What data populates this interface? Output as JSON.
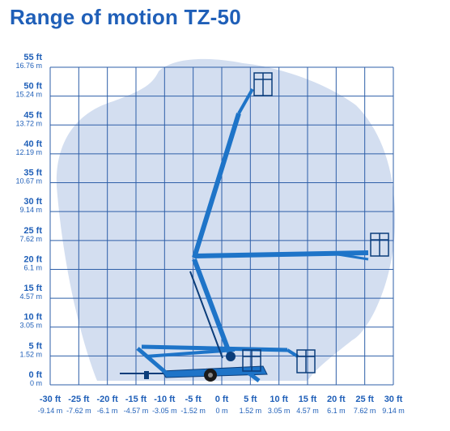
{
  "title": "Range of motion TZ-50",
  "colors": {
    "title": "#1f5fb8",
    "grid": "#2e5fa8",
    "envelope": "#d3def0",
    "machine": "#1e74c8",
    "machine_dark": "#0b3d7a"
  },
  "y_axis": {
    "ticks": [
      {
        "ft_value": 0,
        "ft": "0 ft",
        "m": "0 m"
      },
      {
        "ft_value": 5,
        "ft": "5 ft",
        "m": "1.52 m"
      },
      {
        "ft_value": 10,
        "ft": "10 ft",
        "m": "3.05 m"
      },
      {
        "ft_value": 15,
        "ft": "15 ft",
        "m": "4.57 m"
      },
      {
        "ft_value": 20,
        "ft": "20 ft",
        "m": "6.1 m"
      },
      {
        "ft_value": 25,
        "ft": "25 ft",
        "m": "7.62 m"
      },
      {
        "ft_value": 30,
        "ft": "30 ft",
        "m": "9.14 m"
      },
      {
        "ft_value": 35,
        "ft": "35 ft",
        "m": "10.67 m"
      },
      {
        "ft_value": 40,
        "ft": "40 ft",
        "m": "12.19 m"
      },
      {
        "ft_value": 45,
        "ft": "45 ft",
        "m": "13.72 m"
      },
      {
        "ft_value": 50,
        "ft": "50 ft",
        "m": "15.24 m"
      },
      {
        "ft_value": 55,
        "ft": "55 ft",
        "m": "16.76 m"
      }
    ]
  },
  "x_axis": {
    "ticks": [
      {
        "ft_value": -30,
        "ft": "-30 ft",
        "m": "-9.14 m"
      },
      {
        "ft_value": -25,
        "ft": "-25 ft",
        "m": "-7.62 m"
      },
      {
        "ft_value": -20,
        "ft": "-20 ft",
        "m": "-6.1 m"
      },
      {
        "ft_value": -15,
        "ft": "-15 ft",
        "m": "-4.57 m"
      },
      {
        "ft_value": -10,
        "ft": "-10 ft",
        "m": "-3.05 m"
      },
      {
        "ft_value": -5,
        "ft": "-5 ft",
        "m": "-1.52 m"
      },
      {
        "ft_value": 0,
        "ft": "0 ft",
        "m": "0 m"
      },
      {
        "ft_value": 5,
        "ft": "5 ft",
        "m": "1.52 m"
      },
      {
        "ft_value": 10,
        "ft": "10 ft",
        "m": "3.05 m"
      },
      {
        "ft_value": 15,
        "ft": "15 ft",
        "m": "4.57 m"
      },
      {
        "ft_value": 20,
        "ft": "20 ft",
        "m": "6.1 m"
      },
      {
        "ft_value": 25,
        "ft": "25 ft",
        "m": "7.62 m"
      },
      {
        "ft_value": 30,
        "ft": "30 ft",
        "m": "9.14 m"
      }
    ]
  }
}
